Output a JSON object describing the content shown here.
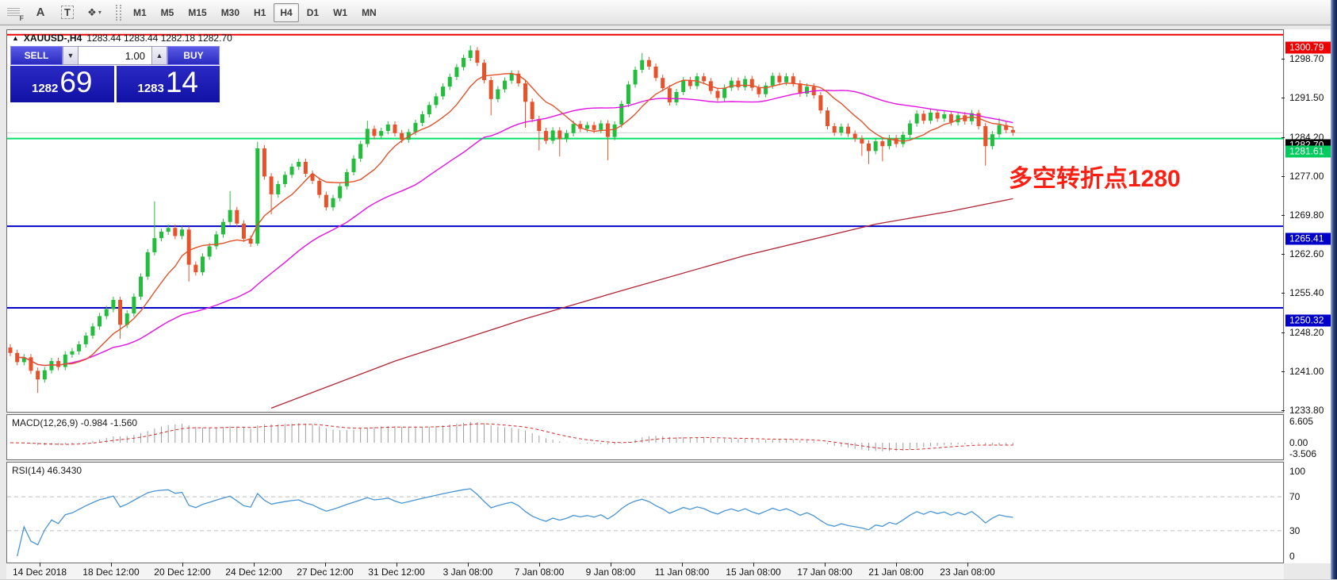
{
  "toolbar": {
    "tools": [
      {
        "name": "indicator-list-icon",
        "label": "F"
      },
      {
        "name": "text-annotation-icon",
        "label": "A"
      },
      {
        "name": "text-label-icon",
        "label": "T"
      },
      {
        "name": "arrow-objects-icon",
        "label": "❖"
      }
    ],
    "timeframes": [
      {
        "label": "M1",
        "active": false
      },
      {
        "label": "M5",
        "active": false
      },
      {
        "label": "M15",
        "active": false
      },
      {
        "label": "M30",
        "active": false
      },
      {
        "label": "H1",
        "active": false
      },
      {
        "label": "H4",
        "active": true
      },
      {
        "label": "D1",
        "active": false
      },
      {
        "label": "W1",
        "active": false
      },
      {
        "label": "MN",
        "active": false
      }
    ]
  },
  "header": {
    "symbol": "XAUUSD-,H4",
    "ohlc": "1283.44 1283.44 1282.18 1282.70"
  },
  "trade_panel": {
    "sell_label": "SELL",
    "buy_label": "BUY",
    "volume": "1.00",
    "sell_price_small": "1282",
    "sell_price_big": "69",
    "buy_price_small": "1283",
    "buy_price_big": "14"
  },
  "annotation": {
    "text": "多空转折点1280",
    "color": "#fb2013"
  },
  "indicator_labels": {
    "macd": "MACD(12,26,9) -0.984 -1.560",
    "rsi": "RSI(14) 46.3430"
  },
  "colors": {
    "bull": "#22bd3a",
    "bear": "#e8522a",
    "ma_fast": "#e0532c",
    "ma_slow": "#e214e2",
    "trend": "#b02434",
    "macd_hist": "#9c9c9c",
    "macd_signal": "#d22c2c",
    "rsi_line": "#4a94d2",
    "level_dash": "#bdbdbd"
  },
  "chart_data": {
    "type": "candlestick",
    "symbol": "XAUUSD-",
    "timeframe": "H4",
    "title": "XAUUSD-,H4 1283.44 1283.44 1282.18 1282.70",
    "price_axis_ticks": [
      1298.7,
      1291.5,
      1284.2,
      1277.0,
      1269.8,
      1262.6,
      1255.4,
      1248.2,
      1241.0,
      1233.8
    ],
    "price_badges": [
      {
        "value": "1300.79",
        "price": 1300.79,
        "color": "#ee0000"
      },
      {
        "value": "1282.70",
        "price": 1282.7,
        "color": "#000000"
      },
      {
        "value": "1281.61",
        "price": 1281.61,
        "color": "#00cc5e"
      },
      {
        "value": "1265.41",
        "price": 1265.41,
        "color": "#0000c8"
      },
      {
        "value": "1250.32",
        "price": 1250.32,
        "color": "#0000c8"
      }
    ],
    "hlines": [
      {
        "price": 1300.79,
        "color": "#ee0000",
        "width": 3
      },
      {
        "price": 1282.7,
        "color": "#b4b4b4",
        "width": 1
      },
      {
        "price": 1281.61,
        "color": "#00e06a",
        "width": 3
      },
      {
        "price": 1265.41,
        "color": "#0000c8",
        "width": 3
      },
      {
        "price": 1250.32,
        "color": "#0000c8",
        "width": 3
      }
    ],
    "time_labels": [
      "14 Dec 2018",
      "18 Dec 12:00",
      "20 Dec 12:00",
      "24 Dec 12:00",
      "27 Dec 12:00",
      "31 Dec 12:00",
      "3 Jan 08:00",
      "7 Jan 08:00",
      "9 Jan 08:00",
      "11 Jan 08:00",
      "15 Jan 08:00",
      "17 Jan 08:00",
      "21 Jan 08:00",
      "23 Jan 08:00"
    ],
    "closes": [
      1242.0,
      1240.3,
      1241.2,
      1238.7,
      1237.1,
      1238.8,
      1240.5,
      1239.4,
      1241.7,
      1242.3,
      1243.6,
      1245.2,
      1246.9,
      1248.8,
      1250.1,
      1251.8,
      1247.2,
      1249.3,
      1252.4,
      1256.1,
      1260.6,
      1263.2,
      1264.4,
      1265.1,
      1263.6,
      1264.8,
      1258.3,
      1256.9,
      1259.8,
      1261.7,
      1263.9,
      1266.2,
      1268.4,
      1265.9,
      1263.1,
      1262.2,
      1279.8,
      1274.6,
      1271.3,
      1273.2,
      1274.9,
      1276.4,
      1277.3,
      1275.1,
      1273.8,
      1271.2,
      1268.9,
      1270.6,
      1272.8,
      1275.4,
      1277.9,
      1280.6,
      1283.4,
      1282.1,
      1283.0,
      1284.2,
      1282.6,
      1281.4,
      1282.8,
      1284.5,
      1286.1,
      1287.8,
      1289.4,
      1291.2,
      1293.0,
      1294.8,
      1296.5,
      1297.9,
      1295.6,
      1292.4,
      1288.9,
      1290.7,
      1292.3,
      1293.6,
      1291.8,
      1288.4,
      1285.2,
      1283.0,
      1281.2,
      1283.1,
      1281.5,
      1282.6,
      1284.3,
      1283.4,
      1284.1,
      1283.2,
      1284.4,
      1281.9,
      1284.2,
      1288.0,
      1291.6,
      1294.3,
      1296.1,
      1294.9,
      1292.8,
      1290.9,
      1288.3,
      1290.2,
      1292.4,
      1291.3,
      1293.1,
      1292.2,
      1290.4,
      1289.1,
      1291.0,
      1292.3,
      1291.1,
      1292.6,
      1291.0,
      1289.8,
      1291.4,
      1293.2,
      1292.0,
      1293.1,
      1291.8,
      1289.9,
      1291.2,
      1289.6,
      1286.8,
      1283.9,
      1282.7,
      1283.8,
      1282.5,
      1281.6,
      1280.7,
      1279.3,
      1281.1,
      1280.2,
      1281.7,
      1280.6,
      1282.3,
      1284.4,
      1286.2,
      1284.9,
      1286.4,
      1285.3,
      1286.1,
      1284.6,
      1285.9,
      1284.8,
      1286.3,
      1283.9,
      1280.2,
      1282.4,
      1284.1,
      1283.2,
      1282.7
    ],
    "wick_overrides": {
      "4": [
        null,
        1234.6
      ],
      "16": [
        null,
        1244.6
      ],
      "21": [
        1270.0,
        null
      ],
      "26": [
        null,
        1255.2
      ],
      "32": [
        1271.9,
        null
      ],
      "36": [
        1281.0,
        1261.8
      ],
      "38": [
        null,
        1267.6
      ],
      "52": [
        1284.9,
        null
      ],
      "67": [
        1298.8,
        null
      ],
      "70": [
        null,
        1285.9
      ],
      "75": [
        null,
        1283.6
      ],
      "77": [
        null,
        1279.4
      ],
      "80": [
        null,
        1278.3
      ],
      "87": [
        null,
        1277.6
      ],
      "92": [
        1297.4,
        null
      ],
      "124": [
        null,
        1278.4
      ],
      "125": [
        null,
        1276.9
      ],
      "127": [
        null,
        1277.4
      ],
      "142": [
        null,
        1276.6
      ],
      "144": [
        1285.4,
        null
      ]
    },
    "overlays": {
      "ma_fast_period": 9,
      "ma_slow_period": 34,
      "trend_points": [
        [
          38,
          1231.8
        ],
        [
          56,
          1240.5
        ],
        [
          75,
          1248.3
        ],
        [
          89,
          1253.5
        ],
        [
          107,
          1260.0
        ],
        [
          126,
          1265.8
        ],
        [
          137,
          1268.2
        ],
        [
          146,
          1270.5
        ]
      ]
    },
    "indicators": {
      "macd": {
        "params": "12,26,9",
        "value_main": -0.984,
        "value_signal": -1.56,
        "axis_labels": [
          {
            "v": 6.605,
            "text": "6.605"
          },
          {
            "v": 0,
            "text": "0.00"
          },
          {
            "v": -3.506,
            "text": "-3.506"
          }
        ]
      },
      "rsi": {
        "params": "14",
        "value": 46.343,
        "axis_labels": [
          {
            "v": 100,
            "text": "100"
          },
          {
            "v": 70,
            "text": "70"
          },
          {
            "v": 30,
            "text": "30"
          },
          {
            "v": 0,
            "text": "0"
          }
        ],
        "levels": [
          70,
          30
        ]
      }
    }
  }
}
